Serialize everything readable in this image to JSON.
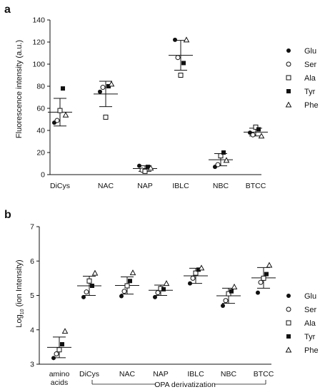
{
  "charts": [
    {
      "panel_label": "a",
      "legend_title": "",
      "xlabel": "",
      "bracket_label": ""
    },
    {
      "panel_label": "b",
      "legend_title": "",
      "xlabel": "",
      "bracket_label": "OPA derivatization"
    }
  ],
  "chart_data": [
    {
      "type": "scatter",
      "ylabel": "Fluorescence intensity (a.u.)",
      "ylim": [
        0,
        140
      ],
      "yticks": [
        0,
        20,
        40,
        60,
        80,
        100,
        120,
        140
      ],
      "categories": [
        "DiCys",
        "NAC",
        "NAP",
        "IBLC",
        "NBC",
        "BTCC"
      ],
      "series": [
        {
          "name": "Glu",
          "marker": "circle-filled",
          "values": [
            47,
            75,
            8,
            122,
            7,
            38
          ]
        },
        {
          "name": "Ser",
          "marker": "circle-open",
          "values": [
            49,
            79,
            4,
            106,
            9,
            36
          ]
        },
        {
          "name": "Ala",
          "marker": "square-open",
          "values": [
            58,
            52,
            3,
            90,
            17,
            43
          ]
        },
        {
          "name": "Tyr",
          "marker": "square-filled",
          "values": [
            78,
            80,
            7,
            101,
            20,
            41
          ]
        },
        {
          "name": "Phe",
          "marker": "triangle-open",
          "values": [
            54,
            82,
            6,
            122,
            13,
            35
          ]
        }
      ],
      "mean": [
        56.5,
        73.0,
        5.5,
        108.0,
        13.5,
        38.5
      ],
      "sd": [
        12.5,
        11.5,
        2.5,
        13.5,
        5.5,
        3.5
      ]
    },
    {
      "type": "scatter",
      "ylabel": "Log10 (ion Intensity)",
      "ylim": [
        3,
        7
      ],
      "yticks": [
        3,
        4,
        5,
        6,
        7
      ],
      "categories": [
        "amino acids",
        "DiCys",
        "NAC",
        "NAP",
        "IBLC",
        "NBC",
        "BTCC"
      ],
      "series": [
        {
          "name": "Glu",
          "marker": "circle-filled",
          "values": [
            3.18,
            4.95,
            4.98,
            4.95,
            5.35,
            4.7,
            5.08
          ]
        },
        {
          "name": "Ser",
          "marker": "circle-open",
          "values": [
            3.3,
            5.1,
            5.12,
            5.08,
            5.5,
            4.85,
            5.38
          ]
        },
        {
          "name": "Ala",
          "marker": "square-open",
          "values": [
            3.42,
            5.42,
            5.28,
            5.2,
            5.65,
            5.05,
            5.5
          ]
        },
        {
          "name": "Tyr",
          "marker": "square-filled",
          "values": [
            3.58,
            5.28,
            5.42,
            5.18,
            5.75,
            5.12,
            5.62
          ]
        },
        {
          "name": "Phe",
          "marker": "triangle-open",
          "values": [
            3.96,
            5.65,
            5.66,
            5.35,
            5.8,
            5.25,
            5.88
          ]
        }
      ],
      "mean": [
        3.49,
        5.28,
        5.29,
        5.15,
        5.57,
        4.99,
        5.51
      ],
      "sd": [
        0.3,
        0.28,
        0.25,
        0.15,
        0.22,
        0.22,
        0.3
      ]
    }
  ]
}
